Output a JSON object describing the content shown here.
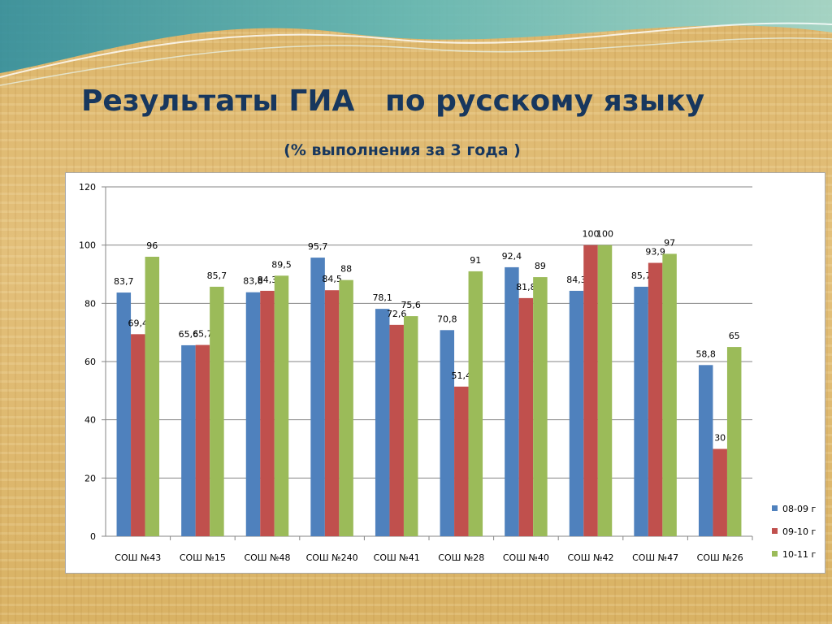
{
  "slide": {
    "title": "Результаты ГИА   по русскому языку",
    "subtitle": "(% выполнения за 3 года )"
  },
  "colors": {
    "title": "#17375e",
    "series": [
      "#4f81bd",
      "#c0504d",
      "#9bbb59"
    ]
  },
  "chart_data": {
    "type": "bar",
    "categories": [
      "СОШ №43",
      "СОШ №15",
      "СОШ №48",
      "СОШ №240",
      "СОШ №41",
      "СОШ №28",
      "СОШ №40",
      "СОШ №42",
      "СОШ №47",
      "СОШ №26"
    ],
    "series": [
      {
        "name": "08-09 г",
        "values": [
          83.7,
          65.6,
          83.8,
          95.7,
          78.1,
          70.8,
          92.4,
          84.3,
          85.7,
          58.8
        ],
        "labels": [
          "83,7",
          "65,6",
          "83,8",
          "95,7",
          "78,1",
          "70,8",
          "92,4",
          "84,3",
          "85,7",
          "58,8"
        ]
      },
      {
        "name": "09-10 г",
        "values": [
          69.4,
          65.7,
          84.3,
          84.5,
          72.6,
          51.4,
          81.8,
          100,
          93.9,
          30
        ],
        "labels": [
          "69,4",
          "65,7",
          "84,3",
          "84,5",
          "72,6",
          "51,4",
          "81,8",
          "100",
          "93,9",
          "30"
        ]
      },
      {
        "name": "10-11 г",
        "values": [
          96,
          85.7,
          89.5,
          88,
          75.6,
          91,
          89,
          100,
          97,
          65
        ],
        "labels": [
          "96",
          "85,7",
          "89,5",
          "88",
          "75,6",
          "91",
          "89",
          "100",
          "97",
          "65"
        ]
      }
    ],
    "ylim": [
      0,
      120
    ],
    "yticks": [
      "0",
      "20",
      "40",
      "60",
      "80",
      "100",
      "120"
    ],
    "grid": true,
    "legend": "right"
  }
}
